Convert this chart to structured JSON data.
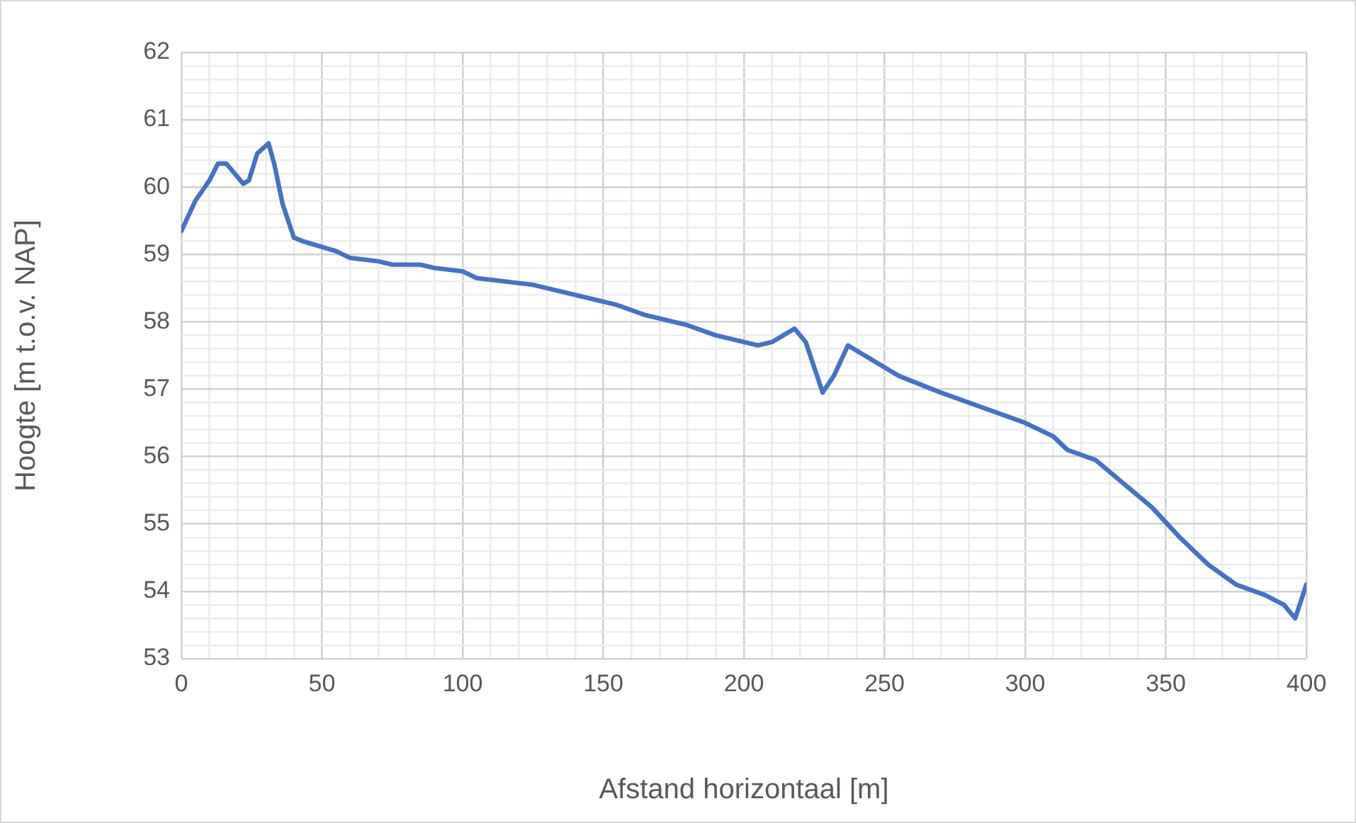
{
  "chart_data": {
    "type": "line",
    "xlabel": "Afstand horizontaal [m]",
    "ylabel": "Hoogte [m t.o.v. NAP]",
    "xlim": [
      0,
      400
    ],
    "ylim": [
      53,
      62
    ],
    "xticks": [
      0,
      {
        "value": 10,
        "label": null
      },
      {
        "value": 20,
        "label": null
      },
      {
        "value": 30,
        "label": null
      },
      {
        "value": 40,
        "label": null
      },
      50,
      {
        "value": 60,
        "label": null
      },
      {
        "value": 70,
        "label": null
      },
      {
        "value": 80,
        "label": null
      },
      {
        "value": 90,
        "label": null
      },
      100,
      {
        "value": 110,
        "label": null
      },
      {
        "value": 120,
        "label": null
      },
      {
        "value": 130,
        "label": null
      },
      {
        "value": 140,
        "label": null
      },
      150,
      {
        "value": 160,
        "label": null
      },
      {
        "value": 170,
        "label": null
      },
      {
        "value": 180,
        "label": null
      },
      {
        "value": 190,
        "label": null
      },
      200,
      {
        "value": 210,
        "label": null
      },
      {
        "value": 220,
        "label": null
      },
      {
        "value": 230,
        "label": null
      },
      {
        "value": 240,
        "label": null
      },
      250,
      {
        "value": 260,
        "label": null
      },
      {
        "value": 270,
        "label": null
      },
      {
        "value": 280,
        "label": null
      },
      {
        "value": 290,
        "label": null
      },
      300,
      {
        "value": 310,
        "label": null
      },
      {
        "value": 320,
        "label": null
      },
      {
        "value": 330,
        "label": null
      },
      {
        "value": 340,
        "label": null
      },
      350,
      {
        "value": 360,
        "label": null
      },
      {
        "value": 370,
        "label": null
      },
      {
        "value": 380,
        "label": null
      },
      {
        "value": 390,
        "label": null
      },
      400
    ],
    "yticks": [
      53,
      {
        "value": 53.2,
        "label": null
      },
      {
        "value": 53.4,
        "label": null
      },
      {
        "value": 53.6,
        "label": null
      },
      {
        "value": 53.8,
        "label": null
      },
      54,
      {
        "value": 54.2,
        "label": null
      },
      {
        "value": 54.4,
        "label": null
      },
      {
        "value": 54.6,
        "label": null
      },
      {
        "value": 54.8,
        "label": null
      },
      55,
      {
        "value": 55.2,
        "label": null
      },
      {
        "value": 55.4,
        "label": null
      },
      {
        "value": 55.6,
        "label": null
      },
      {
        "value": 55.8,
        "label": null
      },
      56,
      {
        "value": 56.2,
        "label": null
      },
      {
        "value": 56.4,
        "label": null
      },
      {
        "value": 56.6,
        "label": null
      },
      {
        "value": 56.8,
        "label": null
      },
      57,
      {
        "value": 57.2,
        "label": null
      },
      {
        "value": 57.4,
        "label": null
      },
      {
        "value": 57.6,
        "label": null
      },
      {
        "value": 57.8,
        "label": null
      },
      58,
      {
        "value": 58.2,
        "label": null
      },
      {
        "value": 58.4,
        "label": null
      },
      {
        "value": 58.6,
        "label": null
      },
      {
        "value": 58.8,
        "label": null
      },
      59,
      {
        "value": 59.2,
        "label": null
      },
      {
        "value": 59.4,
        "label": null
      },
      {
        "value": 59.6,
        "label": null
      },
      {
        "value": 59.8,
        "label": null
      },
      60,
      {
        "value": 60.2,
        "label": null
      },
      {
        "value": 60.4,
        "label": null
      },
      {
        "value": 60.6,
        "label": null
      },
      {
        "value": 60.8,
        "label": null
      },
      61,
      {
        "value": 61.2,
        "label": null
      },
      {
        "value": 61.4,
        "label": null
      },
      {
        "value": 61.6,
        "label": null
      },
      {
        "value": 61.8,
        "label": null
      },
      62
    ],
    "grid": true,
    "legend": false,
    "marker": "none",
    "line_style": "solid",
    "series": [
      {
        "color": "#4472c4",
        "x": [
          0,
          5,
          10,
          13,
          16,
          22,
          24,
          27,
          31,
          33,
          36,
          40,
          43,
          47,
          55,
          60,
          70,
          75,
          85,
          90,
          100,
          105,
          115,
          125,
          135,
          145,
          155,
          165,
          175,
          180,
          190,
          205,
          210,
          218,
          222,
          228,
          232,
          237,
          245,
          255,
          270,
          280,
          290,
          300,
          310,
          315,
          325,
          335,
          345,
          355,
          365,
          375,
          385,
          392,
          396,
          400
        ],
        "values": [
          59.35,
          59.8,
          60.1,
          60.35,
          60.35,
          60.05,
          60.1,
          60.5,
          60.65,
          60.35,
          59.75,
          59.25,
          59.2,
          59.15,
          59.05,
          58.95,
          58.9,
          58.85,
          58.85,
          58.8,
          58.75,
          58.65,
          58.6,
          58.55,
          58.45,
          58.35,
          58.25,
          58.1,
          58.0,
          57.95,
          57.8,
          57.65,
          57.7,
          57.9,
          57.7,
          56.95,
          57.2,
          57.65,
          57.45,
          57.2,
          56.95,
          56.8,
          56.65,
          56.5,
          56.3,
          56.1,
          55.95,
          55.6,
          55.25,
          54.8,
          54.4,
          54.1,
          53.95,
          53.8,
          53.6,
          54.1
        ]
      }
    ]
  }
}
